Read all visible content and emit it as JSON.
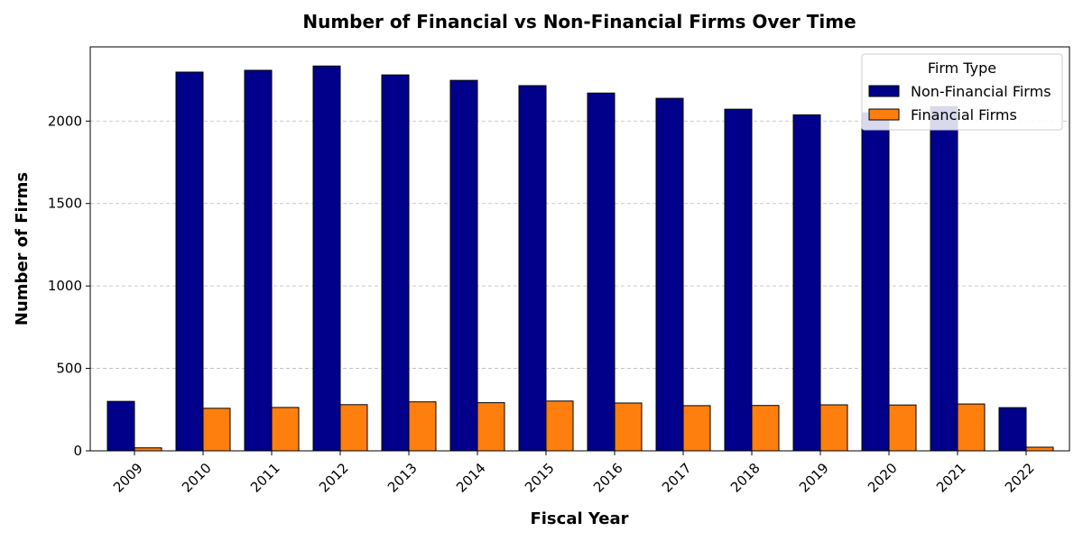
{
  "chart_data": {
    "type": "bar",
    "title": "Number of Financial vs Non-Financial Firms Over Time",
    "xlabel": "Fiscal Year",
    "ylabel": "Number of Firms",
    "categories": [
      "2009",
      "2010",
      "2011",
      "2012",
      "2013",
      "2014",
      "2015",
      "2016",
      "2017",
      "2018",
      "2019",
      "2020",
      "2021",
      "2022"
    ],
    "series": [
      {
        "name": "Non-Financial Firms",
        "color": "#00008b",
        "values": [
          300,
          2297,
          2308,
          2334,
          2280,
          2247,
          2215,
          2170,
          2138,
          2072,
          2038,
          2050,
          2088,
          262
        ]
      },
      {
        "name": "Financial Firms",
        "color": "#ff7f0e",
        "values": [
          18,
          258,
          263,
          280,
          297,
          292,
          302,
          290,
          274,
          275,
          279,
          278,
          284,
          22
        ]
      }
    ],
    "ylim": [
      0,
      2450
    ],
    "yticks": [
      0,
      500,
      1000,
      1500,
      2000
    ],
    "grid": "y-dashed",
    "legend": {
      "title": "Firm Type",
      "placement": "top-right"
    }
  }
}
